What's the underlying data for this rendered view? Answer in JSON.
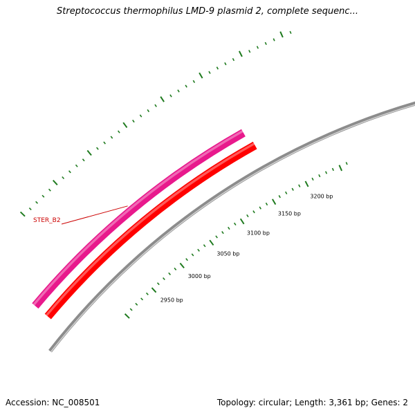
{
  "title": "Streptococcus thermophilus LMD-9 plasmid 2, complete sequenc...",
  "accession_line": "Accession: NC_008501",
  "summary_line": "Topology: circular; Length: 3,361 bp; Genes: 2",
  "genome": {
    "length_bp": 3361,
    "topology": "circular",
    "genes_count": 2
  },
  "colors": {
    "backbone": "#8c8c8c",
    "gene_forward": "#e8198c",
    "gene_reverse": "#ff0000",
    "ticks": "#1e7a1e",
    "label_line": "#cc0000",
    "label_text": "#cc0000"
  },
  "tick_labels": [
    {
      "bp": 2950,
      "text": "2950 bp"
    },
    {
      "bp": 3000,
      "text": "3000 bp"
    },
    {
      "bp": 3050,
      "text": "3050 bp"
    },
    {
      "bp": 3100,
      "text": "3100 bp"
    },
    {
      "bp": 3150,
      "text": "3150 bp"
    },
    {
      "bp": 3200,
      "text": "3200 bp"
    }
  ],
  "features": [
    {
      "name": "STER_B2",
      "strand": "forward",
      "color_key": "gene_forward",
      "label": "STER_B2"
    },
    {
      "name": "",
      "strand": "reverse",
      "color_key": "gene_reverse",
      "label": ""
    }
  ]
}
